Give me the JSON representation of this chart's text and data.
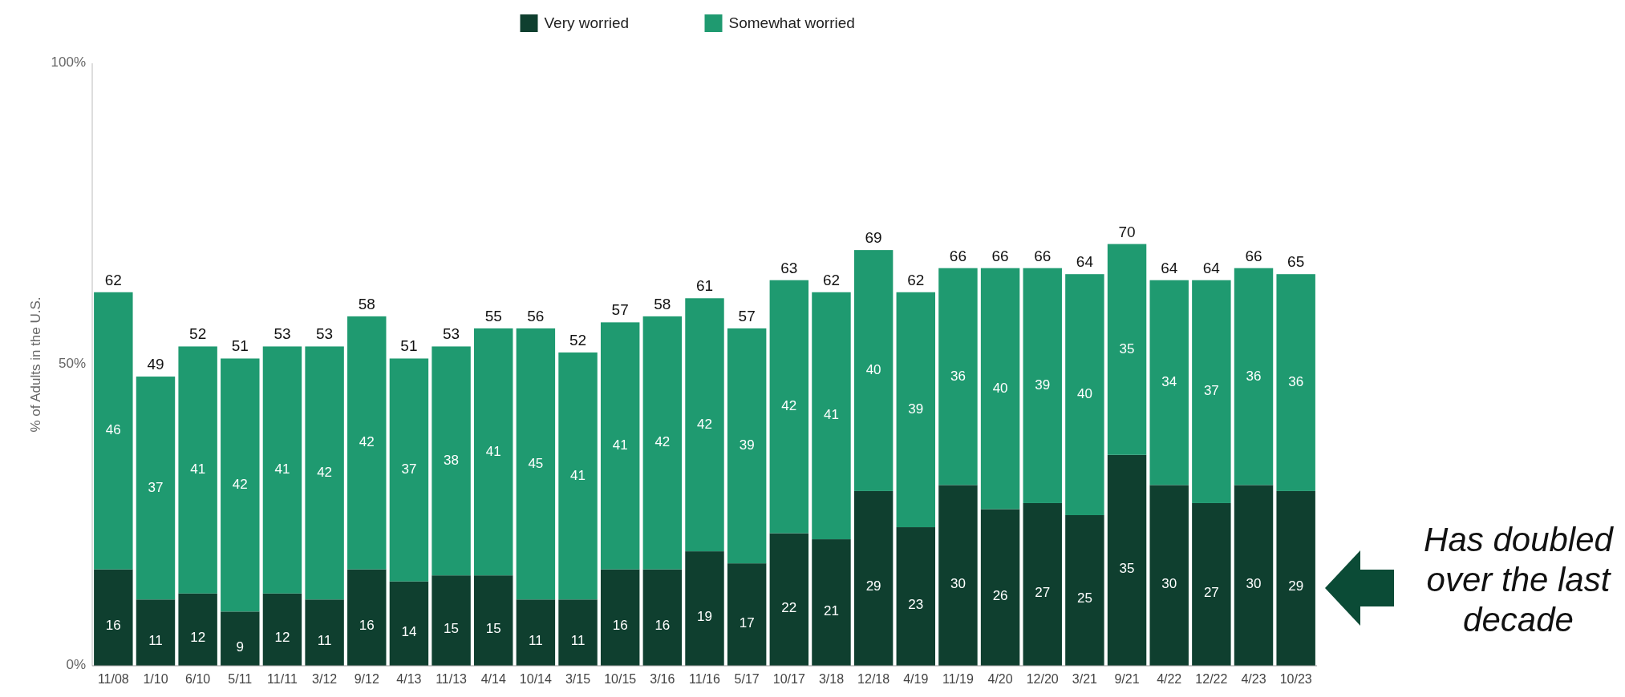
{
  "chart_data": {
    "type": "bar",
    "stacked": true,
    "ylabel": "% of Adults in the U.S.",
    "categories": [
      "11/08",
      "1/10",
      "6/10",
      "5/11",
      "11/11",
      "3/12",
      "9/12",
      "4/13",
      "11/13",
      "4/14",
      "10/14",
      "3/15",
      "10/15",
      "3/16",
      "11/16",
      "5/17",
      "10/17",
      "3/18",
      "12/18",
      "4/19",
      "11/19",
      "4/20",
      "12/20",
      "3/21",
      "9/21",
      "4/22",
      "12/22",
      "4/23",
      "10/23"
    ],
    "series": [
      {
        "name": "Very worried",
        "color": "#0f3f2f",
        "values": [
          16,
          11,
          12,
          9,
          12,
          11,
          16,
          14,
          15,
          15,
          11,
          11,
          16,
          16,
          19,
          17,
          22,
          21,
          29,
          23,
          30,
          26,
          27,
          25,
          35,
          30,
          27,
          30,
          29
        ]
      },
      {
        "name": "Somewhat worried",
        "color": "#1f9a70",
        "values": [
          46,
          37,
          41,
          42,
          41,
          42,
          42,
          37,
          38,
          41,
          45,
          41,
          41,
          42,
          42,
          39,
          42,
          41,
          40,
          39,
          36,
          40,
          39,
          40,
          35,
          34,
          37,
          36,
          36
        ]
      }
    ],
    "totals": [
      "62",
      "49",
      "52",
      "51",
      "53",
      "53",
      "58",
      "51",
      "53",
      "55",
      "56",
      "52",
      "57",
      "58",
      "61",
      "57",
      "63",
      "62",
      "69",
      "62",
      "66",
      "66",
      "66",
      "64",
      "70",
      "64",
      "64",
      "66",
      "65"
    ],
    "data_labels": true,
    "ylim": [
      0,
      100
    ],
    "yticks": [
      {
        "value": 0,
        "label": "0%"
      },
      {
        "value": 50,
        "label": "50%"
      },
      {
        "value": 100,
        "label": "100%"
      }
    ],
    "legend": "top",
    "annotations": [
      "Has doubled over the last decade"
    ]
  }
}
